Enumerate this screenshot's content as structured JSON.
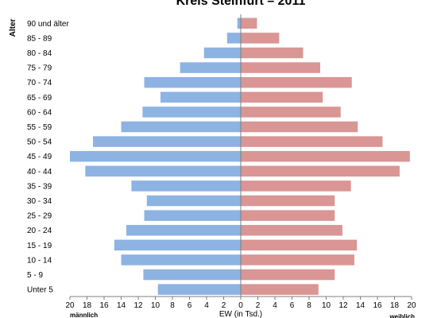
{
  "chart_data": {
    "type": "bar",
    "title": "Kreis Steinfurt – 2011",
    "ylabel": "Alter",
    "xlabel": "EW (in Tsd.)",
    "left_label": "männlich",
    "right_label": "weiblich",
    "xlim": [
      -20,
      20
    ],
    "x_ticks": [
      -20,
      -18,
      -16,
      -14,
      -12,
      -10,
      -8,
      -6,
      -4,
      -2,
      0,
      2,
      4,
      6,
      8,
      10,
      12,
      14,
      16,
      18,
      20
    ],
    "x_tick_labels": [
      "20",
      "18",
      "16",
      "14",
      "12",
      "10",
      "8",
      "6",
      "4",
      "2",
      "0",
      "2",
      "4",
      "6",
      "8",
      "10",
      "12",
      "14",
      "16",
      "18",
      "20"
    ],
    "categories": [
      "90 und älter",
      "85 - 89",
      "80 - 84",
      "75 - 79",
      "70 - 74",
      "65 - 69",
      "60 - 64",
      "55 - 59",
      "50 - 54",
      "45 - 49",
      "40 - 44",
      "35 - 39",
      "30 - 34",
      "25 - 29",
      "20 - 24",
      "15 - 19",
      "10 - 14",
      "5 - 9",
      "Unter 5"
    ],
    "series": [
      {
        "name": "männlich",
        "color": "#8db3e2",
        "values": [
          0.4,
          1.6,
          4.3,
          7.1,
          11.3,
          9.4,
          11.5,
          14.0,
          17.3,
          20.0,
          18.2,
          12.8,
          11.0,
          11.3,
          13.4,
          14.8,
          14.0,
          11.4,
          9.7
        ]
      },
      {
        "name": "weiblich",
        "color": "#d99694",
        "values": [
          1.9,
          4.5,
          7.3,
          9.3,
          13.0,
          9.6,
          11.7,
          13.7,
          16.6,
          19.8,
          18.6,
          12.9,
          11.0,
          11.0,
          11.9,
          13.6,
          13.3,
          11.0,
          9.1
        ]
      }
    ],
    "grid": false
  }
}
